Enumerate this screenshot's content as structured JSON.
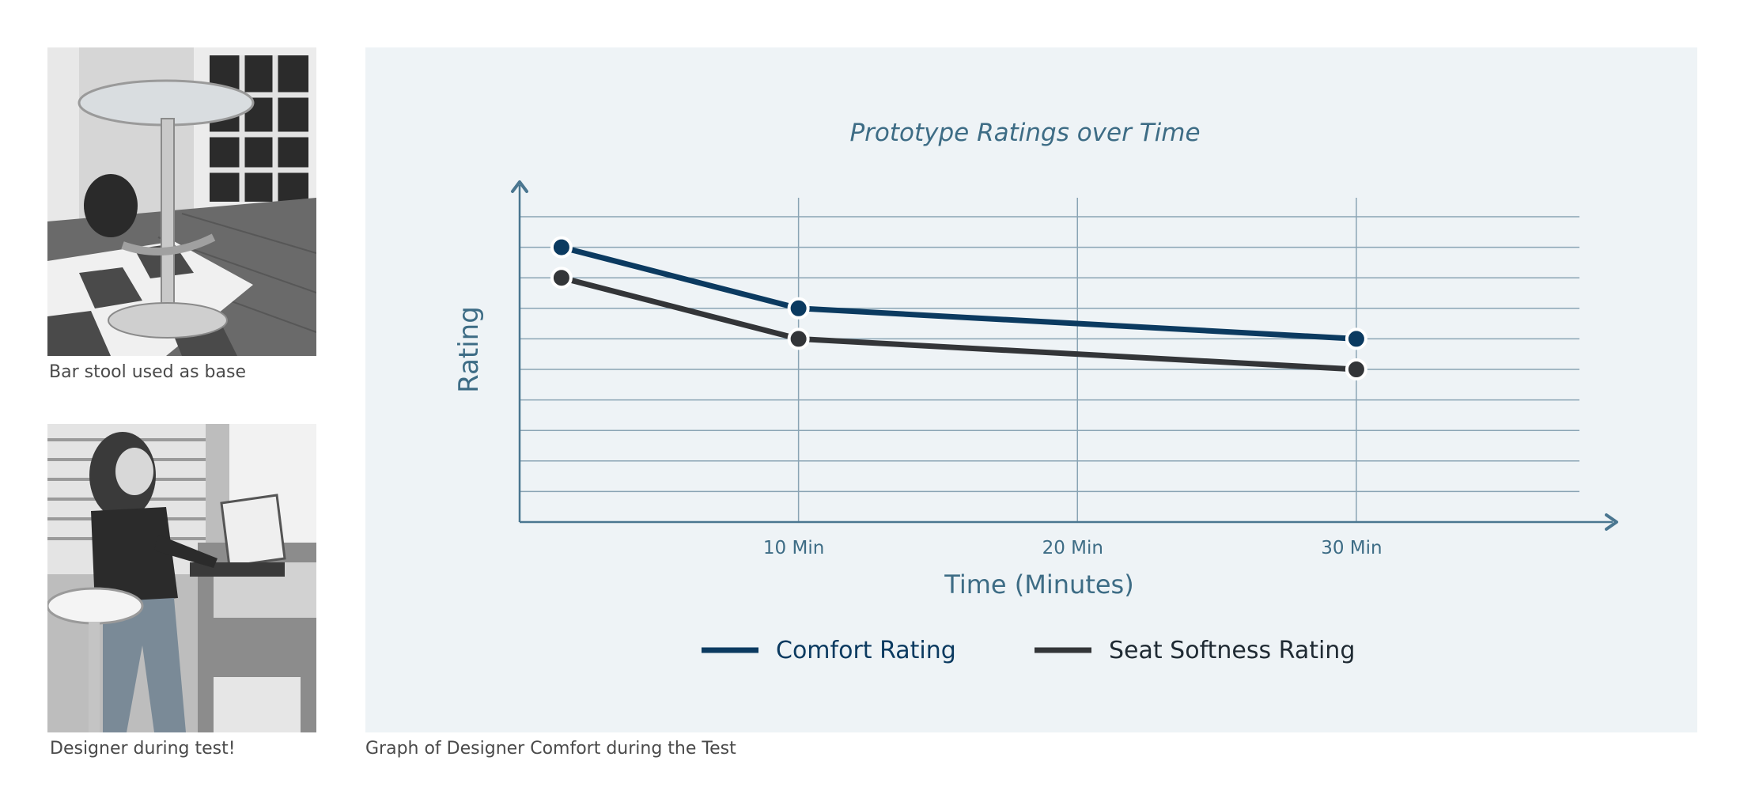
{
  "photos": [
    {
      "icon": "bar-stool-photo",
      "caption": "Bar stool used as base"
    },
    {
      "icon": "designer-test-photo",
      "caption": "Designer during test!"
    }
  ],
  "chart_caption": "Graph of Designer Comfort during the Test",
  "chart_data": {
    "type": "line",
    "title": "Prototype Ratings over Time",
    "xlabel": "Time (Minutes)",
    "ylabel": "Rating",
    "x": [
      1.5,
      10,
      20,
      30
    ],
    "xticks": [
      10,
      20,
      30
    ],
    "xtick_labels": [
      "10 Min",
      "20 Min",
      "30 Min"
    ],
    "xlim": [
      0,
      38
    ],
    "ylim": [
      0,
      10
    ],
    "grid": true,
    "series": [
      {
        "name": "Comfort Rating",
        "color": "#0b3a60",
        "points": [
          [
            1.5,
            9
          ],
          [
            10,
            7
          ],
          [
            30,
            6
          ]
        ]
      },
      {
        "name": "Seat Softness Rating",
        "color": "#333538",
        "points": [
          [
            1.5,
            8
          ],
          [
            10,
            6
          ],
          [
            30,
            5
          ]
        ]
      }
    ],
    "legend": "bottom-center",
    "colors": {
      "grid": "#8aa4b4",
      "axis": "#4a7690",
      "title": "#3d6c85",
      "label": "#3d6c85"
    }
  }
}
